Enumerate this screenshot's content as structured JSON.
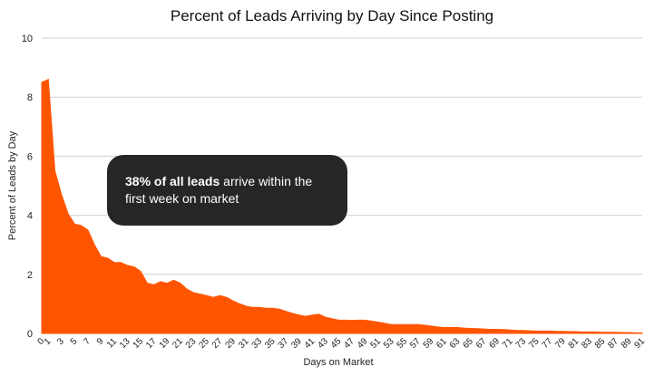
{
  "chart_data": {
    "type": "area",
    "title": "Percent of Leads Arriving by Day Since Posting",
    "xlabel": "Days on Market",
    "ylabel": "Percent of Leads by Day",
    "ylim": [
      0,
      10
    ],
    "yticks": [
      0,
      2,
      4,
      6,
      8,
      10
    ],
    "xlim": [
      0,
      91
    ],
    "xticks": [
      0,
      1,
      3,
      5,
      7,
      9,
      11,
      13,
      15,
      17,
      19,
      21,
      23,
      25,
      27,
      29,
      31,
      33,
      35,
      37,
      39,
      41,
      43,
      45,
      47,
      49,
      51,
      53,
      55,
      57,
      59,
      61,
      63,
      65,
      67,
      69,
      71,
      73,
      75,
      77,
      79,
      81,
      83,
      85,
      87,
      89,
      91
    ],
    "grid": true,
    "fill_color": "#ff5500",
    "x": [
      0,
      1,
      2,
      3,
      4,
      5,
      6,
      7,
      8,
      9,
      10,
      11,
      12,
      13,
      14,
      15,
      16,
      17,
      18,
      19,
      20,
      21,
      22,
      23,
      24,
      25,
      26,
      27,
      28,
      29,
      30,
      31,
      32,
      33,
      34,
      35,
      36,
      37,
      38,
      39,
      40,
      41,
      42,
      43,
      44,
      45,
      46,
      47,
      48,
      49,
      50,
      51,
      52,
      53,
      54,
      55,
      56,
      57,
      58,
      59,
      60,
      61,
      62,
      63,
      64,
      65,
      66,
      67,
      68,
      69,
      70,
      71,
      72,
      73,
      74,
      75,
      76,
      77,
      78,
      79,
      80,
      81,
      82,
      83,
      84,
      85,
      86,
      87,
      88,
      89,
      90,
      91
    ],
    "values": [
      8.5,
      8.6,
      5.5,
      4.7,
      4.05,
      3.7,
      3.65,
      3.5,
      3.0,
      2.6,
      2.55,
      2.4,
      2.4,
      2.3,
      2.25,
      2.1,
      1.7,
      1.65,
      1.75,
      1.7,
      1.8,
      1.7,
      1.5,
      1.38,
      1.33,
      1.28,
      1.22,
      1.28,
      1.22,
      1.1,
      1.0,
      0.92,
      0.88,
      0.88,
      0.85,
      0.85,
      0.82,
      0.75,
      0.68,
      0.62,
      0.58,
      0.62,
      0.65,
      0.55,
      0.5,
      0.45,
      0.45,
      0.44,
      0.45,
      0.45,
      0.42,
      0.38,
      0.34,
      0.3,
      0.3,
      0.3,
      0.3,
      0.3,
      0.28,
      0.25,
      0.22,
      0.2,
      0.2,
      0.2,
      0.18,
      0.17,
      0.16,
      0.15,
      0.14,
      0.14,
      0.13,
      0.12,
      0.1,
      0.1,
      0.09,
      0.08,
      0.08,
      0.08,
      0.07,
      0.07,
      0.06,
      0.06,
      0.05,
      0.05,
      0.05,
      0.04,
      0.04,
      0.04,
      0.03,
      0.03,
      0.02,
      0.02
    ]
  },
  "annotation": {
    "bold_text": "38% of all leads",
    "rest_text": " arrive within the first week on market"
  }
}
